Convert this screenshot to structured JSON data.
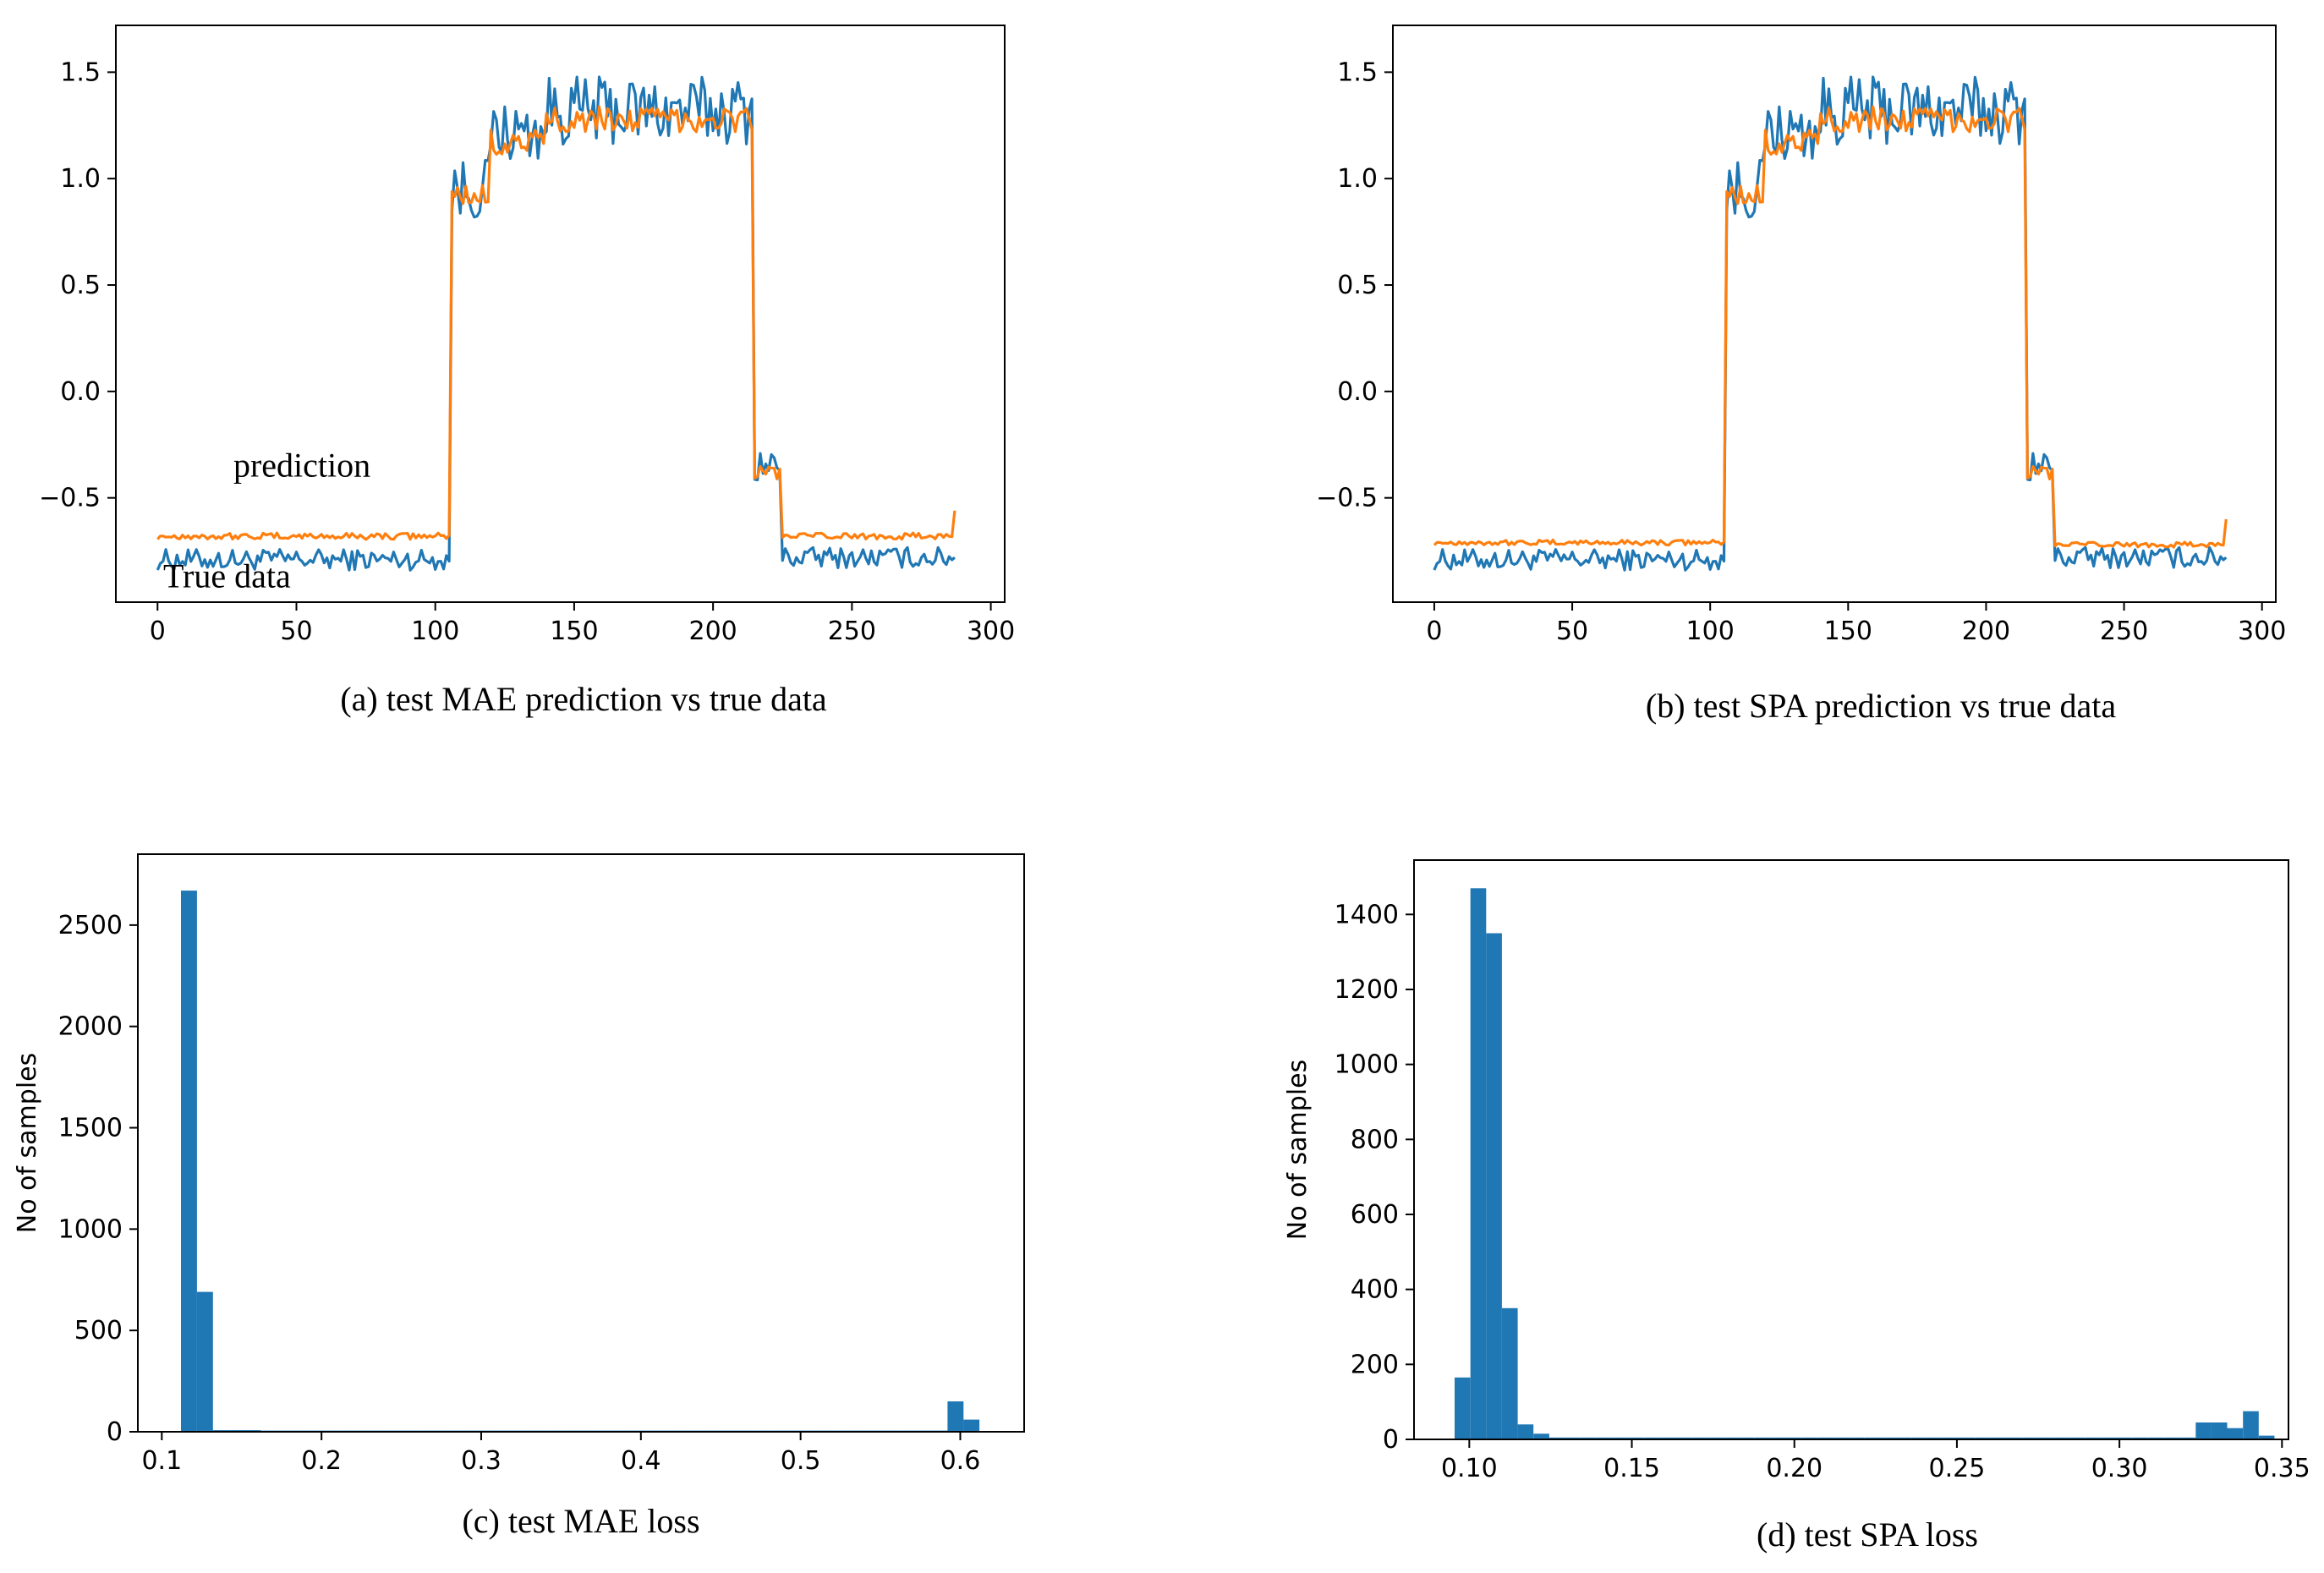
{
  "colors": {
    "true_series": "#1f77b4",
    "prediction_series": "#ff7f0e",
    "axis": "#000000"
  },
  "chart_data": [
    {
      "id": "a",
      "type": "line",
      "caption": "(a) test MAE prediction  vs true data",
      "xlim": [
        -15,
        305
      ],
      "ylim": [
        -0.99,
        1.72
      ],
      "xticks": [
        0,
        50,
        100,
        150,
        200,
        250,
        300
      ],
      "xtick_labels": [
        "0",
        "50",
        "100",
        "150",
        "200",
        "250",
        "300"
      ],
      "yticks": [
        -0.5,
        0.0,
        0.5,
        1.0,
        1.5
      ],
      "ytick_labels": [
        "−0.5",
        "0.0",
        "0.5",
        "1.0",
        "1.5"
      ],
      "annotations": [
        {
          "text": "prediction",
          "x": 52,
          "y": -0.4
        },
        {
          "text": "True data",
          "x": 25,
          "y": -0.92
        }
      ],
      "series": [
        {
          "name": "True data",
          "color": "#1f77b4",
          "segments": [
            {
              "x0": 0,
              "x1": 106,
              "mean": -0.79,
              "amp": 0.05
            },
            {
              "x0": 106,
              "x1": 120,
              "mean": 0.95,
              "amp": 0.15
            },
            {
              "x0": 120,
              "x1": 140,
              "mean": 1.22,
              "amp": 0.14
            },
            {
              "x0": 140,
              "x1": 215,
              "mean": 1.32,
              "amp": 0.16
            },
            {
              "x0": 215,
              "x1": 225,
              "mean": -0.35,
              "amp": 0.08
            },
            {
              "x0": 225,
              "x1": 287,
              "mean": -0.78,
              "amp": 0.05
            }
          ]
        },
        {
          "name": "prediction",
          "color": "#ff7f0e",
          "segments": [
            {
              "x0": 0,
              "x1": 106,
              "mean": -0.68,
              "amp": 0.015
            },
            {
              "x0": 106,
              "x1": 120,
              "mean": 0.92,
              "amp": 0.07
            },
            {
              "x0": 120,
              "x1": 140,
              "mean": 1.17,
              "amp": 0.06
            },
            {
              "x0": 140,
              "x1": 215,
              "mean": 1.28,
              "amp": 0.06
            },
            {
              "x0": 215,
              "x1": 225,
              "mean": -0.38,
              "amp": 0.04
            },
            {
              "x0": 225,
              "x1": 287,
              "mean": -0.68,
              "amp": 0.015
            }
          ]
        }
      ]
    },
    {
      "id": "b",
      "type": "line",
      "caption": "(b) test SPA prediction  vs true data",
      "xlim": [
        -15,
        305
      ],
      "ylim": [
        -0.99,
        1.72
      ],
      "xticks": [
        0,
        50,
        100,
        150,
        200,
        250,
        300
      ],
      "xtick_labels": [
        "0",
        "50",
        "100",
        "150",
        "200",
        "250",
        "300"
      ],
      "yticks": [
        -0.5,
        0.0,
        0.5,
        1.0,
        1.5
      ],
      "ytick_labels": [
        "−0.5",
        "0.0",
        "0.5",
        "1.0",
        "1.5"
      ],
      "annotations": [],
      "series": [
        {
          "name": "True data",
          "color": "#1f77b4",
          "segments": [
            {
              "x0": 0,
              "x1": 106,
              "mean": -0.79,
              "amp": 0.05
            },
            {
              "x0": 106,
              "x1": 120,
              "mean": 0.95,
              "amp": 0.15
            },
            {
              "x0": 120,
              "x1": 140,
              "mean": 1.22,
              "amp": 0.14
            },
            {
              "x0": 140,
              "x1": 215,
              "mean": 1.32,
              "amp": 0.16
            },
            {
              "x0": 215,
              "x1": 225,
              "mean": -0.35,
              "amp": 0.08
            },
            {
              "x0": 225,
              "x1": 287,
              "mean": -0.78,
              "amp": 0.05
            }
          ]
        },
        {
          "name": "prediction",
          "color": "#ff7f0e",
          "segments": [
            {
              "x0": 0,
              "x1": 106,
              "mean": -0.71,
              "amp": 0.012
            },
            {
              "x0": 106,
              "x1": 120,
              "mean": 0.92,
              "amp": 0.07
            },
            {
              "x0": 120,
              "x1": 140,
              "mean": 1.17,
              "amp": 0.06
            },
            {
              "x0": 140,
              "x1": 215,
              "mean": 1.28,
              "amp": 0.06
            },
            {
              "x0": 215,
              "x1": 225,
              "mean": -0.38,
              "amp": 0.04
            },
            {
              "x0": 225,
              "x1": 287,
              "mean": -0.72,
              "amp": 0.012
            }
          ]
        }
      ]
    },
    {
      "id": "c",
      "type": "bar",
      "subtype": "histogram",
      "caption": "(c) test MAE loss",
      "ylabel": "No of samples",
      "xlim": [
        0.085,
        0.64
      ],
      "ylim": [
        0,
        2850
      ],
      "xticks": [
        0.1,
        0.2,
        0.3,
        0.4,
        0.5,
        0.6
      ],
      "xtick_labels": [
        "0.1",
        "0.2",
        "0.3",
        "0.4",
        "0.5",
        "0.6"
      ],
      "yticks": [
        0,
        500,
        1000,
        1500,
        2000,
        2500
      ],
      "ytick_labels": [
        "0",
        "500",
        "1000",
        "1500",
        "2000",
        "2500"
      ],
      "bin_start": 0.112,
      "bin_width": 0.01,
      "counts": [
        2670,
        690,
        8,
        8,
        8,
        6,
        6,
        6,
        6,
        6,
        6,
        6,
        6,
        6,
        6,
        6,
        6,
        6,
        6,
        6,
        6,
        6,
        6,
        6,
        6,
        6,
        6,
        6,
        6,
        6,
        6,
        6,
        6,
        6,
        6,
        6,
        6,
        6,
        6,
        6,
        6,
        6,
        6,
        6,
        6,
        6,
        6,
        6,
        150,
        60
      ]
    },
    {
      "id": "d",
      "type": "bar",
      "subtype": "histogram",
      "caption": "(d) test SPA loss",
      "ylabel": "No of samples",
      "xlim": [
        0.083,
        0.352
      ],
      "ylim": [
        0,
        1545
      ],
      "xticks": [
        0.1,
        0.15,
        0.2,
        0.25,
        0.3,
        0.35
      ],
      "xtick_labels": [
        "0.10",
        "0.15",
        "0.20",
        "0.25",
        "0.30",
        "0.35"
      ],
      "yticks": [
        0,
        200,
        400,
        600,
        800,
        1000,
        1200,
        1400
      ],
      "ytick_labels": [
        "0",
        "200",
        "400",
        "600",
        "800",
        "1000",
        "1200",
        "1400"
      ],
      "bin_start": 0.0955,
      "bin_width": 0.00485,
      "counts": [
        165,
        1470,
        1350,
        350,
        40,
        15,
        5,
        5,
        5,
        5,
        5,
        5,
        5,
        5,
        5,
        5,
        5,
        5,
        5,
        5,
        5,
        5,
        5,
        5,
        5,
        5,
        5,
        5,
        5,
        5,
        5,
        5,
        5,
        5,
        5,
        5,
        5,
        5,
        5,
        5,
        5,
        5,
        5,
        5,
        5,
        5,
        5,
        45,
        45,
        30,
        75,
        10
      ]
    }
  ]
}
